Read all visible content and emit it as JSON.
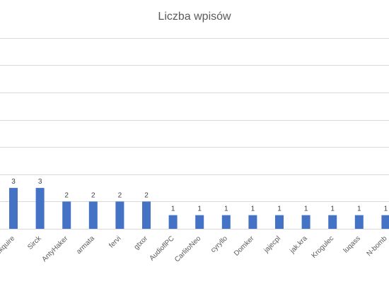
{
  "chart_data": {
    "type": "bar",
    "title": "Liczba wpisów",
    "categories": [
      "Ekquire",
      "Sirck",
      "AntyHaker",
      "armata",
      "fervi",
      "gtxor",
      "AudioflPC",
      "CarlitoNeo",
      "cyryllo",
      "Domker",
      "jajecpl",
      "jak.kra",
      "Krogulec",
      "luqass",
      "N-bomb"
    ],
    "series": [
      {
        "values": [
          3,
          3,
          2,
          2,
          2,
          2,
          1,
          1,
          1,
          1,
          1,
          1,
          1,
          1,
          1
        ]
      }
    ],
    "ylim": [
      0,
      14
    ],
    "ystep": 2,
    "grid": true,
    "bar_color": "#4472c4"
  }
}
